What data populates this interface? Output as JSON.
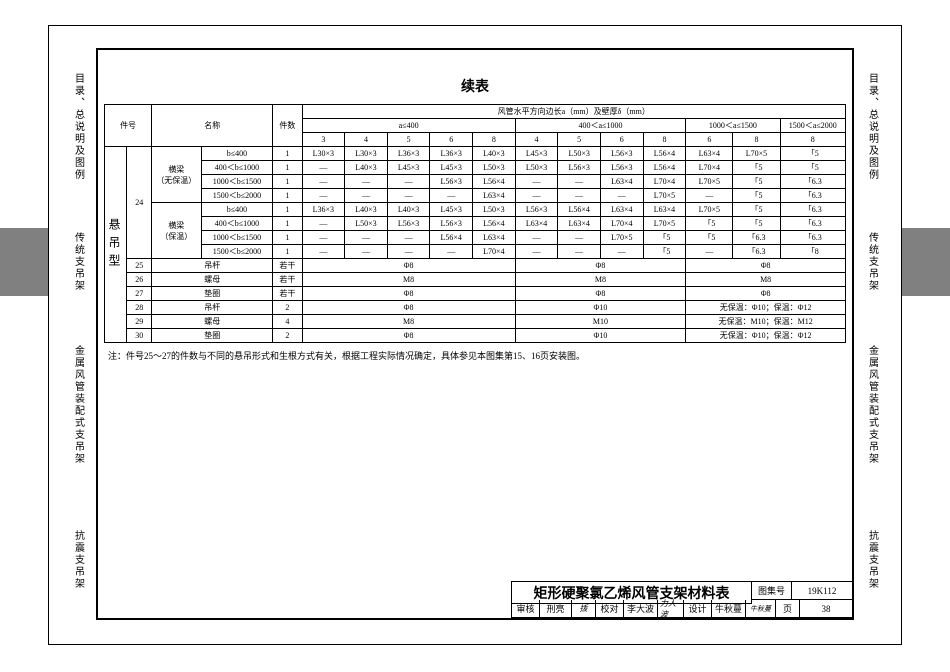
{
  "side_tabs": {
    "t1": "目录、总说明及图例",
    "t2": "传统支吊架",
    "t3": "金属风管装配式支吊架",
    "t4": "抗震支吊架"
  },
  "caption": "续表",
  "headers": {
    "item_no": "件号",
    "name": "名称",
    "qty": "件数",
    "top": "风管水平方向边长a（mm）及壁厚δ（mm）",
    "g1": "a≤400",
    "g2": "400＜a≤1000",
    "g3": "1000＜a≤1500",
    "g4": "1500＜a≤2000",
    "c3": "3",
    "c4": "4",
    "c5": "5",
    "c6": "6",
    "c8": "8"
  },
  "row_group": {
    "label": "悬 吊 型",
    "item24": "24",
    "beam1": "横梁\n（无保温）",
    "beam2": "横梁\n（保温）",
    "b1": "b≤400",
    "b2": "400＜b≤1000",
    "b3": "1000＜b≤1500",
    "b4": "1500＜b≤2000",
    "qty1": "1"
  },
  "rows24a": [
    [
      "L30×3",
      "L30×3",
      "L36×3",
      "L36×3",
      "L40×3",
      "L45×3",
      "L50×3",
      "L56×3",
      "L56×4",
      "L63×4",
      "L70×5",
      "「5"
    ],
    [
      "—",
      "L40×3",
      "L45×3",
      "L45×3",
      "L50×3",
      "L50×3",
      "L56×3",
      "L56×3",
      "L56×4",
      "L70×4",
      "「5",
      "「5"
    ],
    [
      "—",
      "—",
      "—",
      "L56×3",
      "L56×4",
      "—",
      "—",
      "L63×4",
      "L70×4",
      "L70×5",
      "「5",
      "「6.3"
    ],
    [
      "—",
      "—",
      "—",
      "—",
      "L63×4",
      "—",
      "—",
      "—",
      "L70×5",
      "—",
      "「5",
      "「6.3"
    ]
  ],
  "rows24b": [
    [
      "L36×3",
      "L40×3",
      "L40×3",
      "L45×3",
      "L50×3",
      "L56×3",
      "L56×4",
      "L63×4",
      "L63×4",
      "L70×5",
      "「5",
      "「6.3"
    ],
    [
      "—",
      "L50×3",
      "L56×3",
      "L56×3",
      "L56×4",
      "L63×4",
      "L63×4",
      "L70×4",
      "L70×5",
      "「5",
      "「5",
      "「6.3"
    ],
    [
      "—",
      "—",
      "—",
      "L56×4",
      "L63×4",
      "—",
      "—",
      "L70×5",
      "「5",
      "「5",
      "「6.3",
      "「6.3"
    ],
    [
      "—",
      "—",
      "—",
      "—",
      "L70×4",
      "—",
      "—",
      "—",
      "「5",
      "—",
      "「6.3",
      "「8"
    ]
  ],
  "simple_rows": [
    {
      "no": "25",
      "name": "吊杆",
      "qty": "若干",
      "v1": "Φ8",
      "v2": "Φ8",
      "v3": "Φ8",
      "span3": true
    },
    {
      "no": "26",
      "name": "螺母",
      "qty": "若干",
      "v1": "M8",
      "v2": "M8",
      "v3": "M8",
      "span3": true
    },
    {
      "no": "27",
      "name": "垫圈",
      "qty": "若干",
      "v1": "Φ8",
      "v2": "Φ8",
      "v3": "Φ8",
      "span3": true
    },
    {
      "no": "28",
      "name": "吊杆",
      "qty": "2",
      "v1": "Φ8",
      "v2": "Φ10",
      "v3": "无保温：Φ10；保温：Φ12",
      "span3": false
    },
    {
      "no": "29",
      "name": "螺母",
      "qty": "4",
      "v1": "M8",
      "v2": "M10",
      "v3": "无保温：M10；保温：M12",
      "span3": false
    },
    {
      "no": "30",
      "name": "垫圈",
      "qty": "2",
      "v1": "Φ8",
      "v2": "Φ10",
      "v3": "无保温：Φ10；保温：Φ12",
      "span3": false
    }
  ],
  "footnote": "注：件号25～27的件数与不同的悬吊形式和生根方式有关，根据工程实际情况确定，具体参见本图集第15、16页安装图。",
  "title_block": {
    "title": "矩形硬聚氯乙烯风管支架材料表",
    "atlas_label": "图集号",
    "atlas_no": "19K112",
    "review": "审核",
    "review_name": "刑亮",
    "review_sig": "㧞",
    "check": "校对",
    "check_name": "李大波",
    "check_sig": "力人波",
    "design": "设计",
    "design_name": "牛秋蔓",
    "design_sig": "牛秋蔓",
    "page_label": "页",
    "page_no": "38"
  }
}
